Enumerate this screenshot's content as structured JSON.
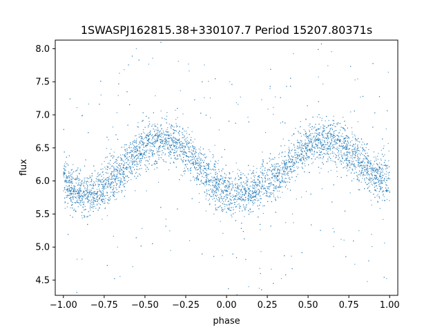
{
  "chart_data": {
    "type": "scatter",
    "title": "1SWASPJ162815.38+330107.7 Period 15207.80371s",
    "xlabel": "phase",
    "ylabel": "flux",
    "xlim": [
      -1.05,
      1.05
    ],
    "ylim": [
      4.27,
      8.13
    ],
    "x_ticks": [
      -1.0,
      -0.75,
      -0.5,
      -0.25,
      0.0,
      0.25,
      0.5,
      0.75,
      1.0
    ],
    "x_tick_labels": [
      "−1.00",
      "−0.75",
      "−0.50",
      "−0.25",
      "0.00",
      "0.25",
      "0.50",
      "0.75",
      "1.00"
    ],
    "y_ticks": [
      4.5,
      5.0,
      5.5,
      6.0,
      6.5,
      7.0,
      7.5,
      8.0
    ],
    "y_tick_labels": [
      "4.5",
      "5.0",
      "5.5",
      "6.0",
      "6.5",
      "7.0",
      "7.5",
      "8.0"
    ],
    "grid": false,
    "marker_color": "#1f77b4",
    "series": [
      {
        "phase": [
          -1.0,
          -0.95,
          -0.9,
          -0.85,
          -0.8,
          -0.75,
          -0.7,
          -0.65,
          -0.6,
          -0.55,
          -0.5,
          -0.45,
          -0.4,
          -0.35,
          -0.3,
          -0.25,
          -0.2,
          -0.15,
          -0.1,
          -0.05,
          0.0,
          0.05,
          0.1,
          0.15,
          0.2,
          0.25,
          0.3,
          0.35,
          0.4,
          0.45,
          0.5,
          0.55,
          0.6,
          0.65,
          0.7,
          0.75,
          0.8,
          0.85,
          0.9,
          0.95,
          1.0
        ],
        "flux_mean": [
          5.99,
          5.88,
          5.82,
          5.8,
          5.84,
          5.92,
          6.02,
          6.14,
          6.28,
          6.41,
          6.51,
          6.58,
          6.61,
          6.6,
          6.55,
          6.46,
          6.33,
          6.18,
          6.03,
          5.9,
          5.82,
          5.79,
          5.8,
          5.83,
          5.9,
          5.98,
          6.08,
          6.19,
          6.31,
          6.43,
          6.52,
          6.58,
          6.61,
          6.59,
          6.54,
          6.45,
          6.33,
          6.2,
          6.08,
          6.01,
          5.99
        ],
        "flux_scatter": 0.3
      }
    ]
  }
}
